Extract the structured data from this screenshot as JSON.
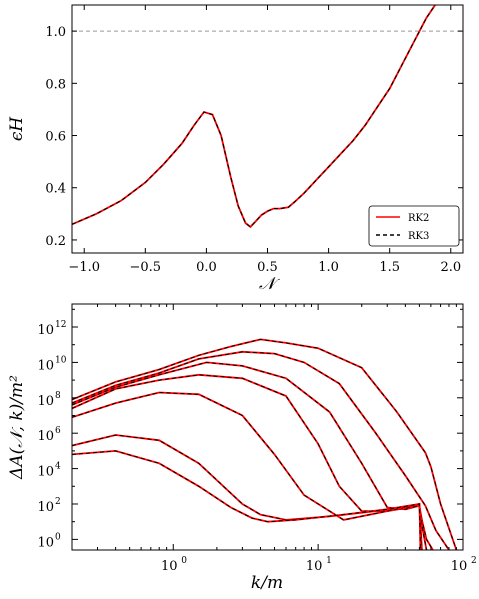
{
  "chart_data": [
    {
      "type": "line",
      "xlabel": "𝒩",
      "ylabel": "ϵH",
      "xlim": [
        -1.1,
        2.1
      ],
      "ylim": [
        0.15,
        1.1
      ],
      "xticks": [
        "−1.0",
        "−0.5",
        "0.0",
        "0.5",
        "1.0",
        "1.5",
        "2.0"
      ],
      "yticks": [
        "0.2",
        "0.4",
        "0.6",
        "0.8",
        "1.0"
      ],
      "reference_line": {
        "y": 1.0,
        "style": "dashed",
        "color": "#999999"
      },
      "legend": {
        "position": "bottom-right",
        "entries": [
          "RK2",
          "RK3"
        ]
      },
      "series": [
        {
          "name": "RK2",
          "color": "#ff0000",
          "style": "solid",
          "x": [
            -1.1,
            -0.9,
            -0.7,
            -0.5,
            -0.35,
            -0.2,
            -0.1,
            -0.02,
            0.05,
            0.12,
            0.2,
            0.26,
            0.32,
            0.36,
            0.4,
            0.45,
            0.5,
            0.55,
            0.6,
            0.67,
            0.72,
            0.8,
            0.9,
            1.0,
            1.1,
            1.2,
            1.3,
            1.4,
            1.5,
            1.6,
            1.7,
            1.8,
            1.9
          ],
          "y": [
            0.26,
            0.3,
            0.35,
            0.42,
            0.49,
            0.57,
            0.64,
            0.69,
            0.68,
            0.6,
            0.44,
            0.33,
            0.265,
            0.25,
            0.27,
            0.295,
            0.31,
            0.32,
            0.32,
            0.325,
            0.345,
            0.38,
            0.43,
            0.48,
            0.53,
            0.58,
            0.64,
            0.71,
            0.78,
            0.87,
            0.96,
            1.05,
            1.12
          ]
        },
        {
          "name": "RK3",
          "color": "#000000",
          "style": "dashed",
          "x": [
            -1.1,
            -0.9,
            -0.7,
            -0.5,
            -0.35,
            -0.2,
            -0.1,
            -0.02,
            0.05,
            0.12,
            0.2,
            0.26,
            0.32,
            0.36,
            0.4,
            0.45,
            0.5,
            0.55,
            0.6,
            0.67,
            0.72,
            0.8,
            0.9,
            1.0,
            1.1,
            1.2,
            1.3,
            1.4,
            1.5,
            1.6,
            1.7,
            1.8,
            1.9
          ],
          "y": [
            0.26,
            0.3,
            0.35,
            0.42,
            0.49,
            0.57,
            0.64,
            0.69,
            0.68,
            0.6,
            0.44,
            0.33,
            0.265,
            0.25,
            0.27,
            0.295,
            0.31,
            0.32,
            0.32,
            0.325,
            0.345,
            0.38,
            0.43,
            0.48,
            0.53,
            0.58,
            0.64,
            0.71,
            0.78,
            0.87,
            0.96,
            1.05,
            1.12
          ]
        }
      ]
    },
    {
      "type": "line",
      "xlabel": "k/m",
      "ylabel": "ΔA(𝒩, k)/m²",
      "xscale": "log",
      "yscale": "log",
      "xlim": [
        0.2,
        100
      ],
      "ylim_log10": [
        -0.6,
        13.3
      ],
      "xticks": [
        {
          "base": "10",
          "exp": "0",
          "value": 1
        },
        {
          "base": "10",
          "exp": "1",
          "value": 10
        },
        {
          "base": "10",
          "exp": "2",
          "value": 100
        }
      ],
      "yticks": [
        {
          "base": "10",
          "exp": "0"
        },
        {
          "base": "10",
          "exp": "2"
        },
        {
          "base": "10",
          "exp": "4"
        },
        {
          "base": "10",
          "exp": "6"
        },
        {
          "base": "10",
          "exp": "8"
        },
        {
          "base": "10",
          "exp": "10"
        },
        {
          "base": "10",
          "exp": "12"
        }
      ],
      "series_note_colors": {
        "RK2": "#ff0000",
        "RK3": "#000000"
      },
      "curves": [
        {
          "k": [
            0.2,
            0.4,
            0.8,
            1.5,
            2.5,
            4,
            6,
            10,
            20,
            35,
            55,
            60,
            70,
            90
          ],
          "log10_y": [
            7.9,
            8.9,
            9.6,
            10.4,
            10.9,
            11.3,
            11.1,
            10.8,
            9.7,
            7.2,
            4.9,
            4.1,
            2.0,
            -0.6
          ]
        },
        {
          "k": [
            0.2,
            0.4,
            0.8,
            1.5,
            3,
            5,
            8,
            14,
            25,
            40,
            55,
            65,
            80
          ],
          "log10_y": [
            7.7,
            8.7,
            9.4,
            10.2,
            10.6,
            10.5,
            10.0,
            8.8,
            6.0,
            3.6,
            1.9,
            0.5,
            -0.6
          ]
        },
        {
          "k": [
            0.2,
            0.4,
            0.8,
            1.7,
            3,
            6,
            12,
            20,
            30,
            40,
            50,
            52,
            56,
            62
          ],
          "log10_y": [
            7.6,
            8.6,
            9.3,
            10.0,
            9.8,
            9.1,
            7.2,
            4.3,
            1.8,
            1.7,
            1.9,
            1.1,
            0.0,
            -0.6
          ]
        },
        {
          "k": [
            0.2,
            0.4,
            0.8,
            1.5,
            3,
            6,
            10,
            14,
            20,
            30,
            50,
            52,
            56
          ],
          "log10_y": [
            7.4,
            8.5,
            9.0,
            9.3,
            9.1,
            8.1,
            5.4,
            3.0,
            1.6,
            1.6,
            1.9,
            0.8,
            -0.6
          ]
        },
        {
          "k": [
            0.2,
            0.4,
            0.8,
            1.5,
            3,
            5,
            8,
            15,
            30,
            50,
            51,
            52
          ],
          "log10_y": [
            6.9,
            7.7,
            8.3,
            8.2,
            7.0,
            4.8,
            2.5,
            1.1,
            1.6,
            2.0,
            0.9,
            -0.6
          ]
        },
        {
          "k": [
            0.2,
            0.4,
            0.8,
            1.5,
            3,
            4,
            6,
            12,
            25,
            50,
            50.8,
            51.5
          ],
          "log10_y": [
            5.3,
            5.9,
            5.6,
            4.3,
            2.0,
            1.4,
            1.1,
            1.3,
            1.6,
            2.0,
            0.9,
            -0.6
          ]
        },
        {
          "k": [
            0.2,
            0.4,
            0.8,
            1.5,
            2.5,
            3.5,
            4.5,
            7,
            15,
            30,
            50,
            50.4,
            50.8
          ],
          "log10_y": [
            4.8,
            5.0,
            4.3,
            3.0,
            1.8,
            1.2,
            1.0,
            1.1,
            1.4,
            1.7,
            2.0,
            0.9,
            -0.6
          ]
        }
      ]
    }
  ]
}
